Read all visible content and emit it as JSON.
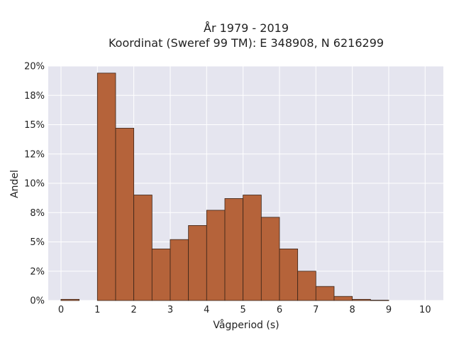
{
  "chart_data": {
    "type": "bar",
    "title_lines": [
      "År 1979 - 2019",
      "Koordinat (Sweref 99 TM): E 348908, N 6216299"
    ],
    "xlabel": "Vågperiod (s)",
    "ylabel": "Andel",
    "xlim": [
      -0.35,
      10.5
    ],
    "ylim": [
      0,
      0.2
    ],
    "x_ticks": [
      0,
      1,
      2,
      3,
      4,
      5,
      6,
      7,
      8,
      9,
      10
    ],
    "y_ticks": [
      {
        "value": 0,
        "label": "0%"
      },
      {
        "value": 0.025,
        "label": "2%"
      },
      {
        "value": 0.05,
        "label": "5%"
      },
      {
        "value": 0.075,
        "label": "8%"
      },
      {
        "value": 0.1,
        "label": "10%"
      },
      {
        "value": 0.125,
        "label": "12%"
      },
      {
        "value": 0.15,
        "label": "15%"
      },
      {
        "value": 0.175,
        "label": "18%"
      },
      {
        "value": 0.2,
        "label": "20%"
      }
    ],
    "bin_width": 0.5,
    "bins": [
      {
        "start": 0.0,
        "value": 0.001
      },
      {
        "start": 0.5,
        "value": 0.0
      },
      {
        "start": 1.0,
        "value": 0.194
      },
      {
        "start": 1.5,
        "value": 0.147
      },
      {
        "start": 2.0,
        "value": 0.09
      },
      {
        "start": 2.5,
        "value": 0.044
      },
      {
        "start": 3.0,
        "value": 0.052
      },
      {
        "start": 3.5,
        "value": 0.064
      },
      {
        "start": 4.0,
        "value": 0.077
      },
      {
        "start": 4.5,
        "value": 0.087
      },
      {
        "start": 5.0,
        "value": 0.09
      },
      {
        "start": 5.5,
        "value": 0.071
      },
      {
        "start": 6.0,
        "value": 0.044
      },
      {
        "start": 6.5,
        "value": 0.025
      },
      {
        "start": 7.0,
        "value": 0.012
      },
      {
        "start": 7.5,
        "value": 0.0035
      },
      {
        "start": 8.0,
        "value": 0.001
      },
      {
        "start": 8.5,
        "value": 0.0003
      }
    ],
    "bar_color": "#b5633a",
    "bar_edge_color": "#3a2418",
    "plot_background": "#e5e5ef",
    "grid": true,
    "grid_color": "#ffffff"
  }
}
